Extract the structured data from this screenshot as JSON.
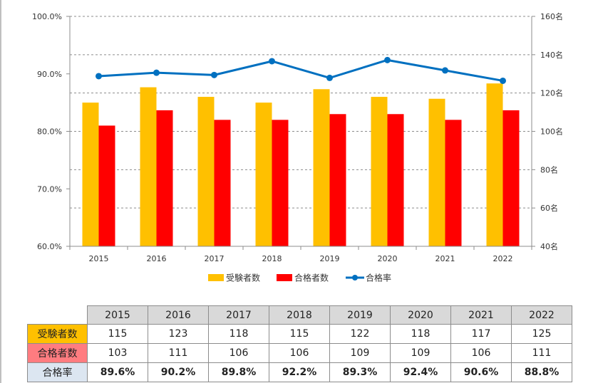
{
  "chart_data": {
    "type": "bar+line",
    "categories": [
      "2015",
      "2016",
      "2017",
      "2018",
      "2019",
      "2020",
      "2021",
      "2022"
    ],
    "series": [
      {
        "name": "受験者数",
        "type": "bar",
        "axis": "right",
        "color": "#FFC000",
        "values": [
          115,
          123,
          118,
          115,
          122,
          118,
          117,
          125
        ]
      },
      {
        "name": "合格者数",
        "type": "bar",
        "axis": "right",
        "color": "#FF0000",
        "values": [
          103,
          111,
          106,
          106,
          109,
          109,
          106,
          111
        ]
      },
      {
        "name": "合格率",
        "type": "line",
        "axis": "left",
        "color": "#0070C0",
        "values": [
          89.6,
          90.2,
          89.8,
          92.2,
          89.3,
          92.4,
          90.6,
          88.8
        ]
      }
    ],
    "left_axis": {
      "min": 60,
      "max": 100,
      "ticks": [
        "60.0%",
        "70.0%",
        "80.0%",
        "90.0%",
        "100.0%"
      ]
    },
    "right_axis": {
      "min": 40,
      "max": 160,
      "ticks": [
        "40名",
        "60名",
        "80名",
        "100名",
        "120名",
        "140名",
        "160名"
      ]
    },
    "legend": [
      "受験者数",
      "合格者数",
      "合格率"
    ],
    "legend_position": "bottom"
  },
  "table": {
    "headers": [
      "2015",
      "2016",
      "2017",
      "2018",
      "2019",
      "2020",
      "2021",
      "2022"
    ],
    "rows": [
      {
        "label": "受験者数",
        "color": "#FFC000",
        "values": [
          "115",
          "123",
          "118",
          "115",
          "122",
          "118",
          "117",
          "125"
        ]
      },
      {
        "label": "合格者数",
        "color": "#FF7C80",
        "values": [
          "103",
          "111",
          "106",
          "106",
          "109",
          "109",
          "106",
          "111"
        ]
      },
      {
        "label": "合格率",
        "color": "#DCE6F1",
        "values": [
          "89.6%",
          "90.2%",
          "89.8%",
          "92.2%",
          "89.3%",
          "92.4%",
          "90.6%",
          "88.8%"
        ]
      }
    ]
  }
}
